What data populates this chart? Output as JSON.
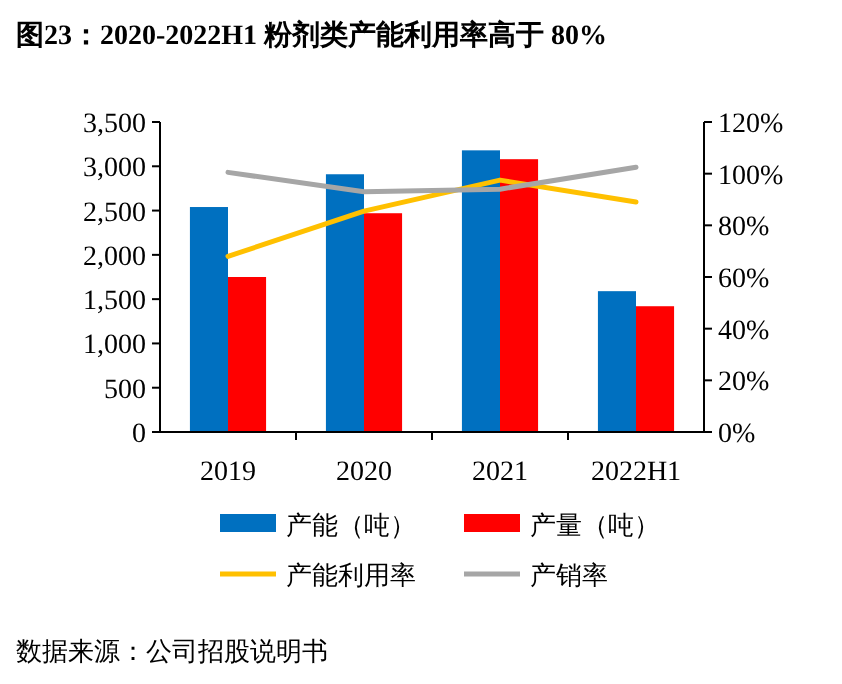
{
  "chart_data": {
    "type": "bar",
    "title": "图23：2020-2022H1 粉剂类产能利用率高于 80%",
    "categories": [
      "2019",
      "2020",
      "2021",
      "2022H1"
    ],
    "series": [
      {
        "name": "产能（吨）",
        "color": "#0070c0",
        "values": [
          2540,
          2910,
          3180,
          1590
        ]
      },
      {
        "name": "产量（吨）",
        "color": "#ff0000",
        "values": [
          1750,
          2470,
          3080,
          1420
        ]
      },
      {
        "name": "产能利用率",
        "type": "line",
        "axis": "y2",
        "color": "#ffc000",
        "values": [
          68,
          85.5,
          97.5,
          89
        ]
      },
      {
        "name": "产销率",
        "type": "line",
        "axis": "y2",
        "color": "#a6a6a6",
        "values": [
          100.5,
          93,
          94,
          102.5
        ]
      }
    ],
    "ylim": [
      0,
      3500
    ],
    "yticks": [
      {
        "value": 0,
        "label": "0"
      },
      {
        "value": 500,
        "label": "500"
      },
      {
        "value": 1000,
        "label": "1,000"
      },
      {
        "value": 1500,
        "label": "1,500"
      },
      {
        "value": 2000,
        "label": "2,000"
      },
      {
        "value": 2500,
        "label": "2,500"
      },
      {
        "value": 3000,
        "label": "3,000"
      },
      {
        "value": 3500,
        "label": "3,500"
      }
    ],
    "y2lim": [
      0,
      120
    ],
    "y2ticks": [
      {
        "value": 0,
        "label": "0%"
      },
      {
        "value": 20,
        "label": "20%"
      },
      {
        "value": 40,
        "label": "40%"
      },
      {
        "value": 60,
        "label": "60%"
      },
      {
        "value": 80,
        "label": "80%"
      },
      {
        "value": 100,
        "label": "100%"
      },
      {
        "value": 120,
        "label": "120%"
      }
    ],
    "legend": "bottom",
    "grid": false,
    "annotations": [
      "数据来源：公司招股说明书"
    ]
  }
}
